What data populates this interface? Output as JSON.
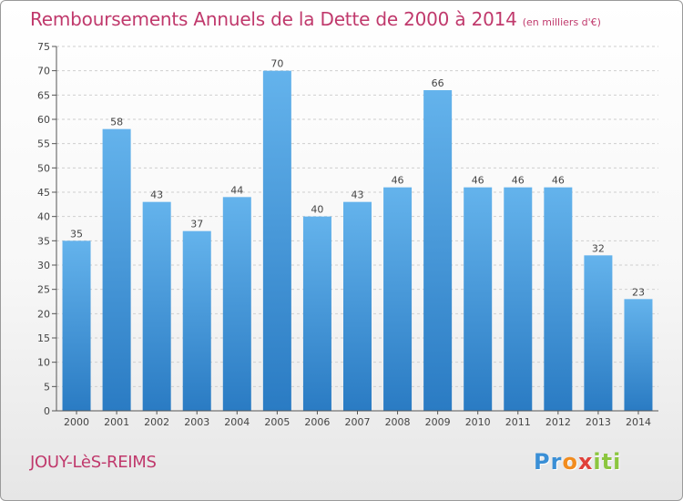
{
  "chart_data": {
    "type": "bar",
    "title": "Remboursements Annuels de la Dette de 2000 à 2014",
    "unit_note": "(en milliers d'€)",
    "categories": [
      "2000",
      "2001",
      "2002",
      "2003",
      "2004",
      "2005",
      "2006",
      "2007",
      "2008",
      "2009",
      "2010",
      "2011",
      "2012",
      "2013",
      "2014"
    ],
    "values": [
      35,
      58,
      43,
      37,
      44,
      70,
      40,
      43,
      46,
      66,
      46,
      46,
      46,
      32,
      23
    ],
    "ylim": [
      0,
      75
    ],
    "ytick_step": 5,
    "grid": true,
    "xlabel": "",
    "ylabel": "",
    "bar_color_top": "#64b3ec",
    "bar_color_bottom": "#2a7bc3"
  },
  "footer": {
    "commune": "JOUY-LèS-REIMS",
    "logo_letters": [
      "P",
      "r",
      "o",
      "x",
      "i",
      "t",
      "i"
    ],
    "logo_colors": [
      "#3a8fd6",
      "#3a8fd6",
      "#f28c1e",
      "#e0403a",
      "#8cc63f",
      "#8cc63f",
      "#8cc63f"
    ]
  },
  "colors": {
    "accent": "#c0396c",
    "axis": "#555555",
    "grid": "#cfcfcf"
  }
}
